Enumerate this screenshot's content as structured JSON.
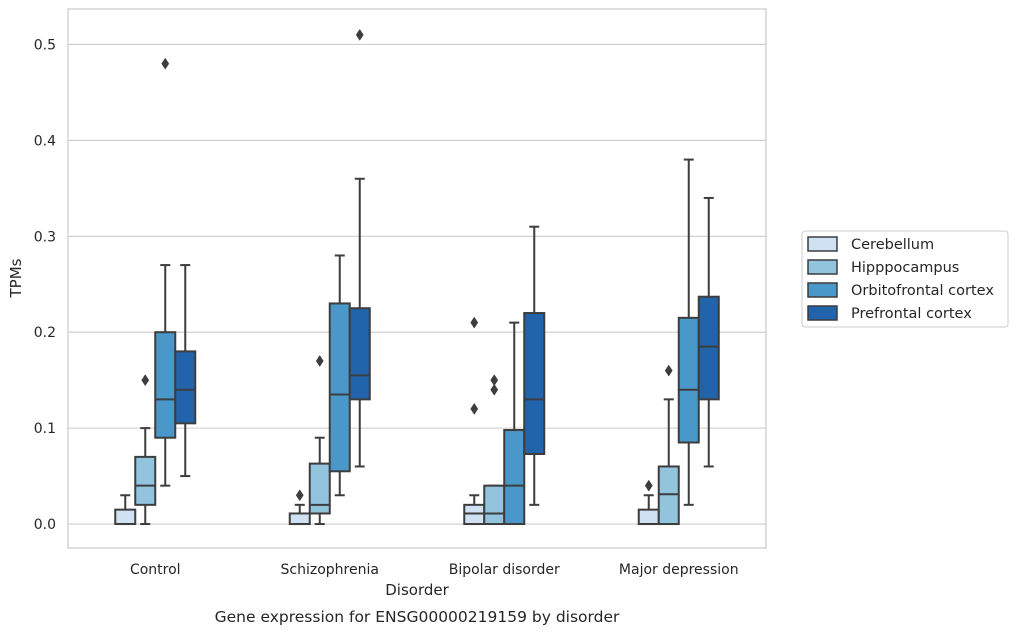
{
  "chart_data": {
    "type": "box",
    "title": "",
    "caption": "Gene expression for ENSG00000219159 by disorder",
    "xlabel": "Disorder",
    "ylabel": "TPMs",
    "ylim": [
      -0.025,
      0.537
    ],
    "yticks": [
      0.0,
      0.1,
      0.2,
      0.3,
      0.4,
      0.5
    ],
    "ytick_labels": [
      "0.0",
      "0.1",
      "0.2",
      "0.3",
      "0.4",
      "0.5"
    ],
    "grid": true,
    "legend_position": "right",
    "categories": [
      "Control",
      "Schizophrenia",
      "Bipolar disorder",
      "Major depression"
    ],
    "series": [
      {
        "name": "Cerebellum",
        "color": "#cfe1f2",
        "boxes": [
          {
            "whislo": 0.0,
            "q1": 0.0,
            "med": 0.0,
            "q3": 0.015,
            "whishi": 0.03,
            "fliers": []
          },
          {
            "whislo": 0.0,
            "q1": 0.0,
            "med": 0.0,
            "q3": 0.011,
            "whishi": 0.02,
            "fliers": [
              0.03
            ]
          },
          {
            "whislo": 0.0,
            "q1": 0.0,
            "med": 0.011,
            "q3": 0.02,
            "whishi": 0.03,
            "fliers": [
              0.12,
              0.21
            ]
          },
          {
            "whislo": 0.0,
            "q1": 0.0,
            "med": 0.0,
            "q3": 0.015,
            "whishi": 0.03,
            "fliers": [
              0.04
            ]
          }
        ]
      },
      {
        "name": "Hipppocampus",
        "color": "#93c4de",
        "boxes": [
          {
            "whislo": 0.0,
            "q1": 0.02,
            "med": 0.04,
            "q3": 0.07,
            "whishi": 0.1,
            "fliers": [
              0.15
            ]
          },
          {
            "whislo": 0.0,
            "q1": 0.011,
            "med": 0.02,
            "q3": 0.063,
            "whishi": 0.09,
            "fliers": [
              0.17
            ]
          },
          {
            "whislo": 0.0,
            "q1": 0.0,
            "med": 0.011,
            "q3": 0.04,
            "whishi": 0.04,
            "fliers": [
              0.14,
              0.15
            ]
          },
          {
            "whislo": 0.0,
            "q1": 0.0,
            "med": 0.031,
            "q3": 0.06,
            "whishi": 0.13,
            "fliers": [
              0.16
            ]
          }
        ]
      },
      {
        "name": "Orbitofrontal cortex",
        "color": "#4a98c9",
        "boxes": [
          {
            "whislo": 0.04,
            "q1": 0.09,
            "med": 0.13,
            "q3": 0.2,
            "whishi": 0.27,
            "fliers": [
              0.48
            ]
          },
          {
            "whislo": 0.03,
            "q1": 0.055,
            "med": 0.135,
            "q3": 0.23,
            "whishi": 0.28,
            "fliers": []
          },
          {
            "whislo": 0.0,
            "q1": 0.0,
            "med": 0.04,
            "q3": 0.098,
            "whishi": 0.21,
            "fliers": []
          },
          {
            "whislo": 0.02,
            "q1": 0.085,
            "med": 0.14,
            "q3": 0.215,
            "whishi": 0.38,
            "fliers": []
          }
        ]
      },
      {
        "name": "Prefrontal cortex",
        "color": "#2164ab",
        "boxes": [
          {
            "whislo": 0.05,
            "q1": 0.105,
            "med": 0.14,
            "q3": 0.18,
            "whishi": 0.27,
            "fliers": []
          },
          {
            "whislo": 0.06,
            "q1": 0.13,
            "med": 0.155,
            "q3": 0.225,
            "whishi": 0.36,
            "fliers": [
              0.51
            ]
          },
          {
            "whislo": 0.02,
            "q1": 0.073,
            "med": 0.13,
            "q3": 0.22,
            "whishi": 0.31,
            "fliers": []
          },
          {
            "whislo": 0.06,
            "q1": 0.13,
            "med": 0.185,
            "q3": 0.237,
            "whishi": 0.34,
            "fliers": []
          }
        ]
      }
    ]
  }
}
